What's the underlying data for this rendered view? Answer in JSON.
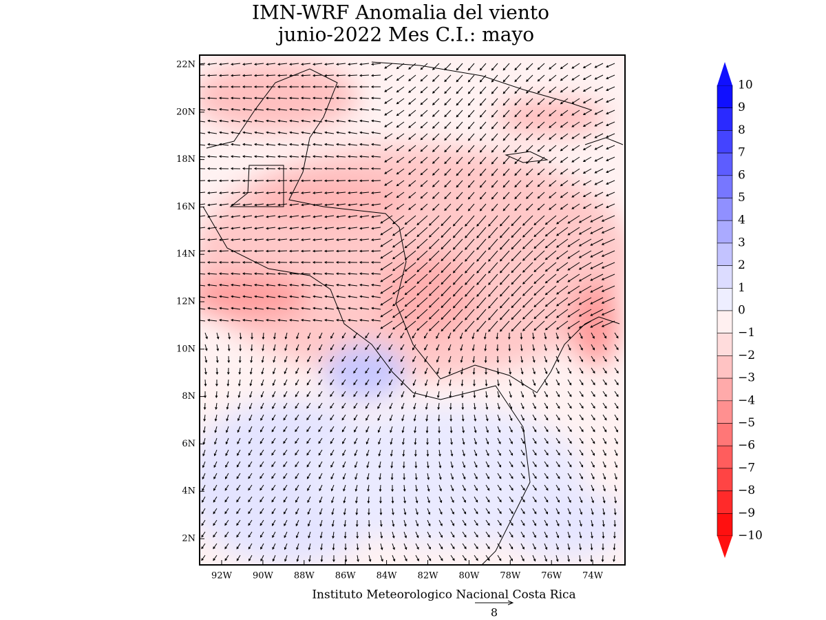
{
  "title": {
    "line1": "IMN-WRF Anomalia del viento",
    "line2": "junio-2022 Mes C.I.: mayo"
  },
  "lat_labels": [
    "22N",
    "20N",
    "18N",
    "16N",
    "14N",
    "12N",
    "10N",
    "8N",
    "6N",
    "4N",
    "2N"
  ],
  "lon_labels": [
    "92W",
    "90W",
    "88W",
    "86W",
    "84W",
    "82W",
    "80W",
    "78W",
    "76W",
    "74W"
  ],
  "colorbar": {
    "labels": [
      "10",
      "9",
      "8",
      "7",
      "6",
      "5",
      "4",
      "3",
      "2",
      "1",
      "0",
      "−1",
      "−2",
      "−3",
      "−4",
      "−5",
      "−6",
      "−7",
      "−8",
      "−9",
      "−10"
    ],
    "colors": [
      "#1010ff",
      "#2a2aff",
      "#4444ff",
      "#5d5dff",
      "#7777ff",
      "#9090ff",
      "#aaaaff",
      "#c3c3ff",
      "#dcdcff",
      "#eeeeff",
      "#fff0f0",
      "#ffdcdc",
      "#ffc3c3",
      "#ffaaaa",
      "#ff9090",
      "#ff7777",
      "#ff5d5d",
      "#ff4444",
      "#ff2a2a",
      "#ff1010"
    ]
  },
  "footer": "Instituto Meteorologico Nacional Costa Rica",
  "vector_scale": "8"
}
